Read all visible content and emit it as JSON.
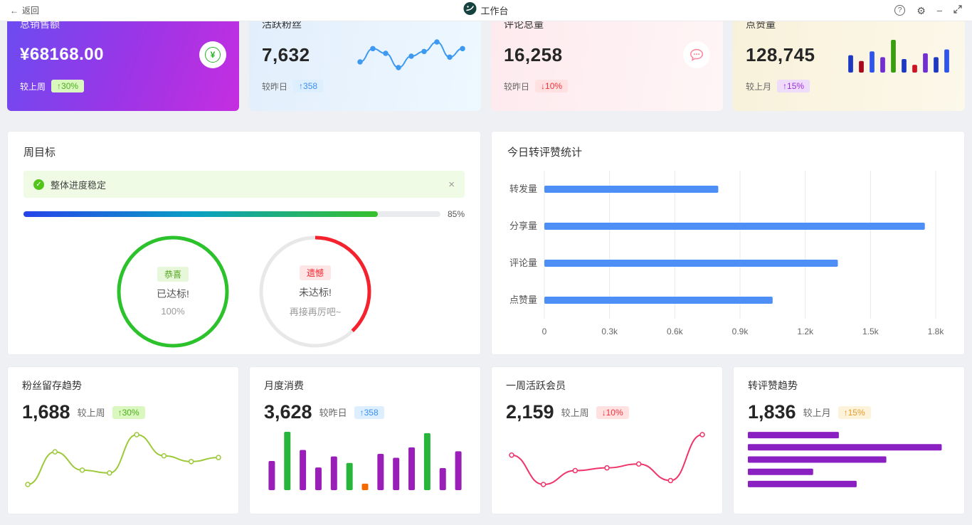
{
  "topbar": {
    "back": "返回",
    "title": "工作台",
    "help": "?",
    "gear": "⚙",
    "minimize": "–"
  },
  "icons": {
    "yen": "¥",
    "check": "✓",
    "close": "×",
    "back_arrow": "←"
  },
  "stat_cards": [
    {
      "title": "总销售额",
      "value": "¥68168.00",
      "compare": "较上周",
      "delta": "↑30%"
    },
    {
      "title": "活跃粉丝",
      "value": "7,632",
      "compare": "较昨日",
      "delta": "↑358",
      "chart": {
        "type": "line",
        "color": "#3e9af0",
        "marker": "dot",
        "values": [
          30,
          58,
          48,
          18,
          42,
          52,
          72,
          40,
          58
        ]
      }
    },
    {
      "title": "评论总量",
      "value": "16,258",
      "compare": "较昨日",
      "delta": "↓10%"
    },
    {
      "title": "点赞量",
      "value": "128,745",
      "compare": "较上月",
      "delta": "↑15%",
      "chart": {
        "type": "bar",
        "values": [
          45,
          30,
          55,
          40,
          85,
          35,
          20,
          50,
          40,
          60
        ],
        "colors": [
          "#1d39c4",
          "#a8071a",
          "#2f54eb",
          "#722ed1",
          "#389e0d",
          "#1d39c4",
          "#cf1322",
          "#722ed1",
          "#1d39c4",
          "#2f54eb"
        ]
      }
    }
  ],
  "weekly_goal": {
    "title": "周目标",
    "alert_text": "整体进度稳定",
    "progress_value": 85,
    "progress_label": "85%",
    "success_ring": {
      "badge": "恭喜",
      "line1": "已达标!",
      "line2": "100%"
    },
    "fail_ring": {
      "badge": "遗憾",
      "line1": "未达标!",
      "line2": "再接再厉吧~"
    }
  },
  "today_stats": {
    "title": "今日转评赞统计",
    "chart": {
      "type": "hbar-axis",
      "color": "#4e8ff7",
      "categories": [
        "转发量",
        "分享量",
        "评论量",
        "点赞量"
      ],
      "values": [
        800,
        1750,
        1350,
        1050
      ],
      "xmax": 1800,
      "ticks": [
        {
          "v": 0,
          "label": "0"
        },
        {
          "v": 300,
          "label": "0.3k"
        },
        {
          "v": 600,
          "label": "0.6k"
        },
        {
          "v": 900,
          "label": "0.9k"
        },
        {
          "v": 1200,
          "label": "1.2k"
        },
        {
          "v": 1500,
          "label": "1.5k"
        },
        {
          "v": 1800,
          "label": "1.8k"
        }
      ]
    }
  },
  "trend_cards": [
    {
      "title": "粉丝留存趋势",
      "value": "1,688",
      "compare": "较上周",
      "delta": "↑30%",
      "chart": {
        "type": "line",
        "color": "#9dc93a",
        "marker": "open",
        "values": [
          5,
          62,
          30,
          25,
          92,
          55,
          45,
          52
        ]
      }
    },
    {
      "title": "月度消费",
      "value": "3,628",
      "compare": "较昨日",
      "delta": "↑358",
      "chart": {
        "type": "bar",
        "values": [
          45,
          90,
          62,
          35,
          52,
          42,
          10,
          56,
          50,
          66,
          88,
          34,
          60
        ],
        "colors": [
          "#9a1fb8",
          "#27b53c",
          "#9a1fb8",
          "#9a1fb8",
          "#9a1fb8",
          "#27b53c",
          "#f56a00",
          "#9a1fb8",
          "#9a1fb8",
          "#9a1fb8",
          "#27b53c",
          "#9a1fb8",
          "#9a1fb8"
        ]
      }
    },
    {
      "title": "一周活跃会员",
      "value": "2,159",
      "compare": "较上周",
      "delta": "↓10%",
      "chart": {
        "type": "line",
        "color": "#f0346a",
        "marker": "open",
        "values": [
          58,
          5,
          30,
          35,
          42,
          12,
          95
        ]
      }
    },
    {
      "title": "转评赞趋势",
      "value": "1,836",
      "compare": "较上月",
      "delta": "↑15%",
      "chart": {
        "type": "hbar",
        "color": "#8a1fc2",
        "xmax": 100,
        "values": [
          46,
          98,
          70,
          33,
          55
        ]
      }
    }
  ]
}
